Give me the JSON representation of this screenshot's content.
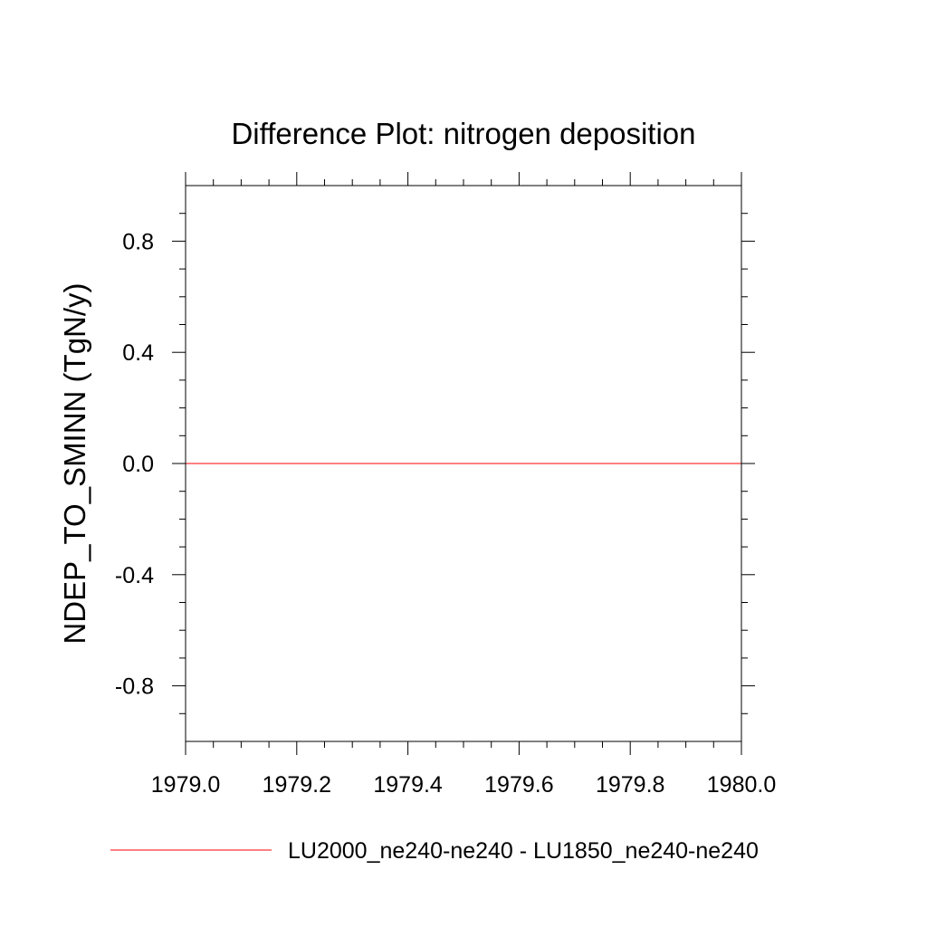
{
  "chart_data": {
    "type": "line",
    "title": "Difference Plot: nitrogen deposition",
    "xlabel": "",
    "ylabel": "NDEP_TO_SMINN  (TgN/y)",
    "xlim": [
      1979.0,
      1980.0
    ],
    "ylim": [
      -1.0,
      1.0
    ],
    "x_ticks": [
      1979.0,
      1979.2,
      1979.4,
      1979.6,
      1979.8,
      1980.0
    ],
    "x_tick_labels": [
      "1979.0",
      "1979.2",
      "1979.4",
      "1979.6",
      "1979.8",
      "1980.0"
    ],
    "y_ticks": [
      -0.8,
      -0.4,
      0.0,
      0.4,
      0.8
    ],
    "y_tick_labels": [
      "-0.8",
      "-0.4",
      "0.0",
      "0.4",
      "0.8"
    ],
    "grid": false,
    "legend_position": "bottom",
    "series": [
      {
        "name": "LU2000_ne240-ne240 - LU1850_ne240-ne240",
        "color": "#ff0000",
        "x": [
          1979.0,
          1980.0
        ],
        "y": [
          0.0,
          0.0
        ]
      }
    ]
  }
}
